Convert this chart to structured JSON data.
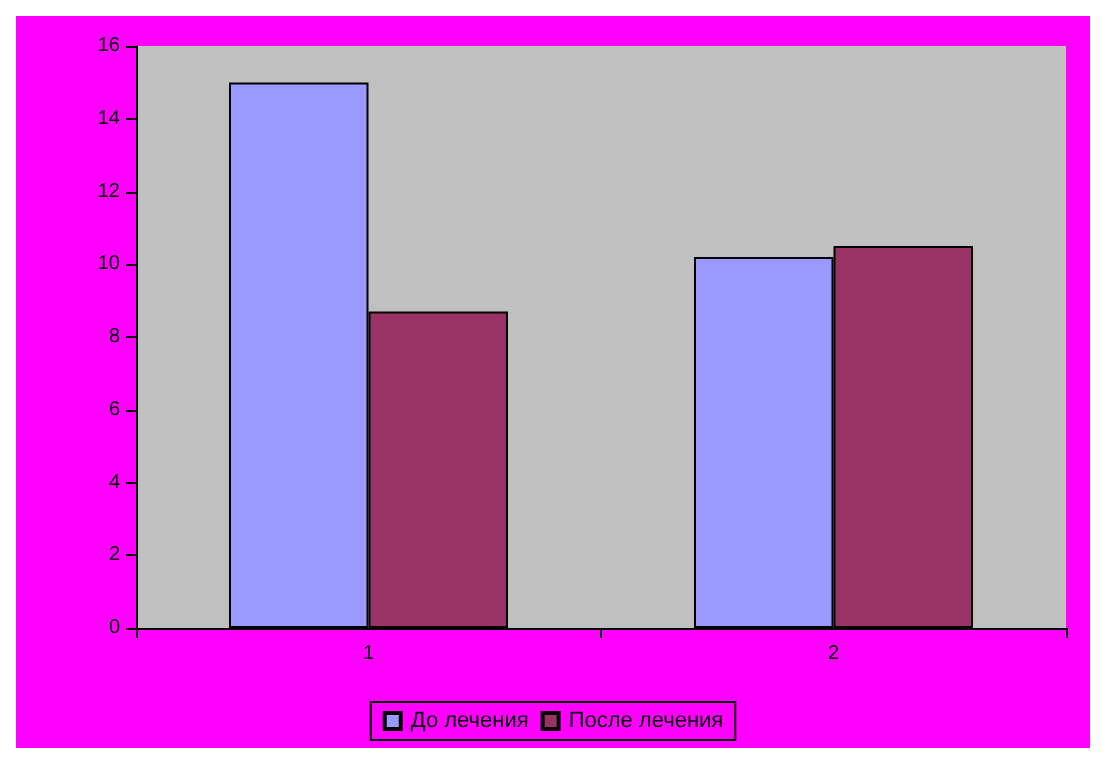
{
  "chart_data": {
    "type": "bar",
    "categories": [
      "1",
      "2"
    ],
    "series": [
      {
        "name": "До лечения",
        "color": "#9999ff",
        "values": [
          15.0,
          10.2
        ]
      },
      {
        "name": "После лечения",
        "color": "#993366",
        "values": [
          8.7,
          10.5
        ]
      }
    ],
    "ylim": [
      0,
      16
    ],
    "yticks": [
      0,
      2,
      4,
      6,
      8,
      10,
      12,
      14,
      16
    ],
    "grid": false,
    "legend": "bottom"
  }
}
